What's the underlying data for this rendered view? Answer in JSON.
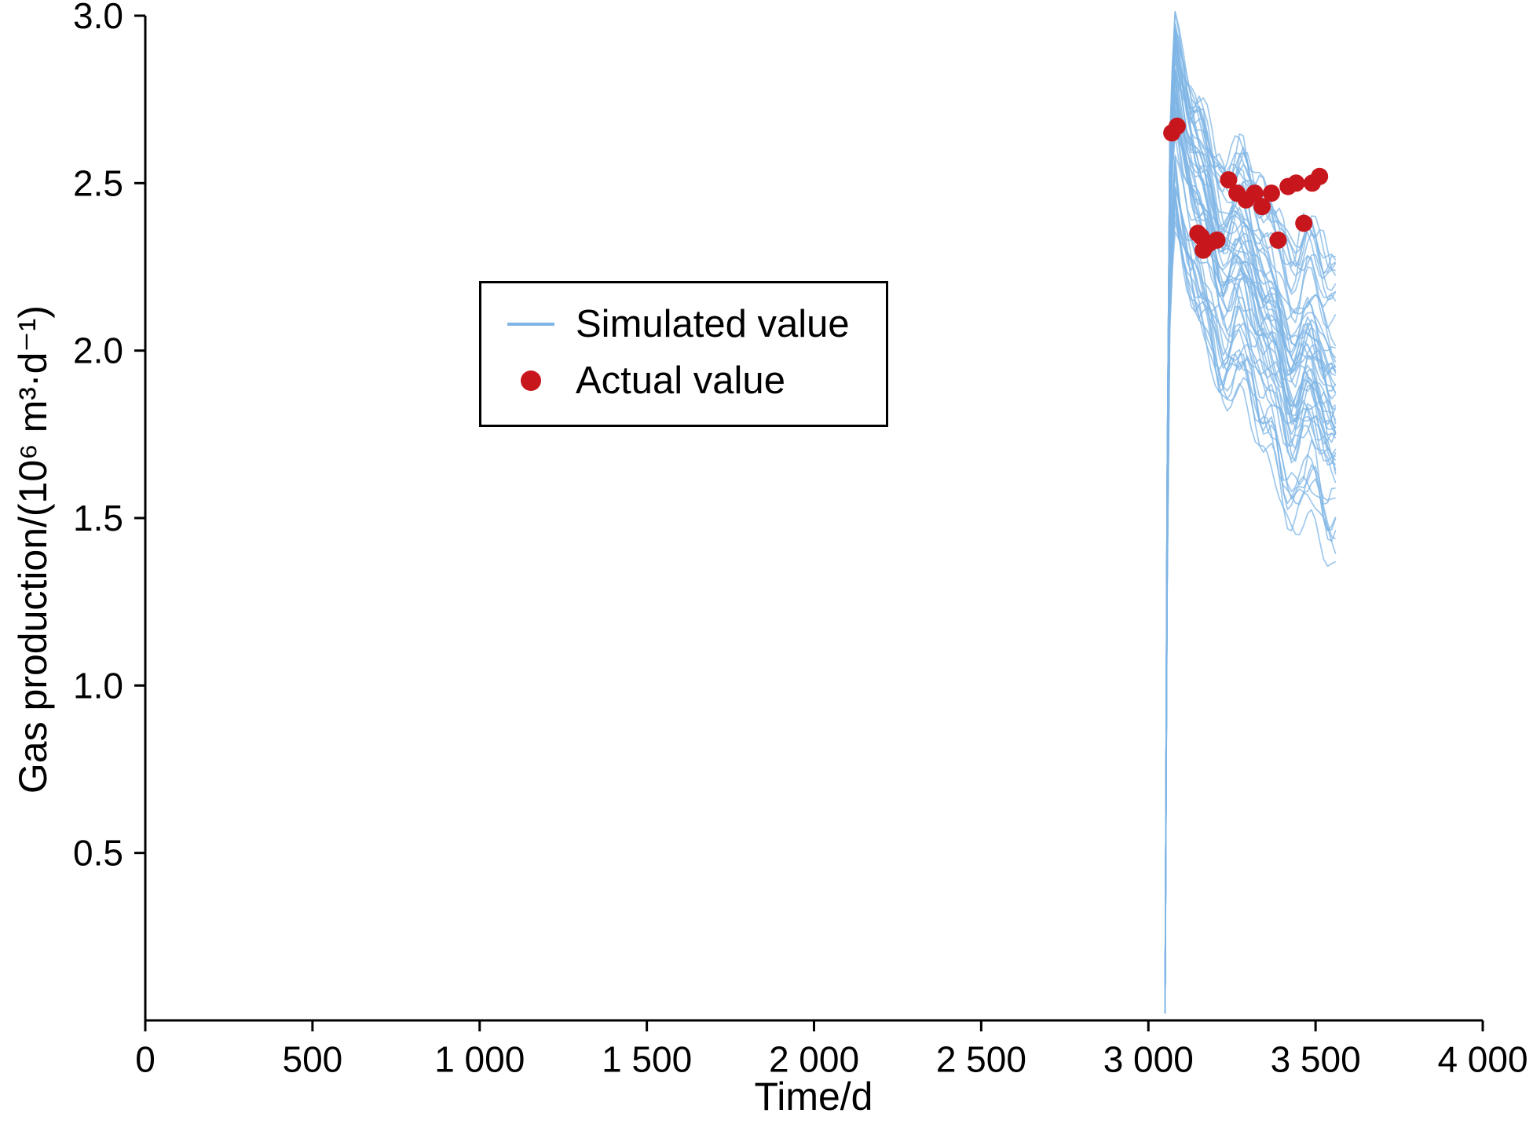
{
  "chart_data": {
    "type": "line",
    "title": "",
    "xlabel": "Time/d",
    "ylabel": "Gas production/(10⁶ m³·d⁻¹)",
    "xlim": [
      0,
      4000
    ],
    "ylim": [
      0,
      3.0
    ],
    "grid": false,
    "x_ticks": [
      {
        "value": 0,
        "label": "0"
      },
      {
        "value": 500,
        "label": "500"
      },
      {
        "value": 1000,
        "label": "1 000"
      },
      {
        "value": 1500,
        "label": "1 500"
      },
      {
        "value": 2000,
        "label": "2 000"
      },
      {
        "value": 2500,
        "label": "2 500"
      },
      {
        "value": 3000,
        "label": "3 000"
      },
      {
        "value": 3500,
        "label": "3 500"
      },
      {
        "value": 4000,
        "label": "4 000"
      }
    ],
    "y_ticks": [
      {
        "value": 0.5,
        "label": "0.5"
      },
      {
        "value": 1.0,
        "label": "1.0"
      },
      {
        "value": 1.5,
        "label": "1.5"
      },
      {
        "value": 2.0,
        "label": "2.0"
      },
      {
        "value": 2.5,
        "label": "2.5"
      },
      {
        "value": 3.0,
        "label": "3.0"
      }
    ],
    "legend": {
      "position": "upper-center-left",
      "entries": [
        {
          "label": "Simulated value",
          "type": "line",
          "color": "#7FB5E5"
        },
        {
          "label": "Actual value",
          "type": "dot",
          "color": "#C8161D"
        }
      ]
    },
    "actual_points": {
      "name": "Actual value",
      "color": "#C8161D",
      "marker_radius_px": 11,
      "points": [
        [
          3070,
          2.65
        ],
        [
          3086,
          2.67
        ],
        [
          3148,
          2.35
        ],
        [
          3158,
          2.34
        ],
        [
          3164,
          2.3
        ],
        [
          3182,
          2.32
        ],
        [
          3205,
          2.33
        ],
        [
          3240,
          2.51
        ],
        [
          3265,
          2.47
        ],
        [
          3292,
          2.45
        ],
        [
          3318,
          2.47
        ],
        [
          3340,
          2.43
        ],
        [
          3368,
          2.47
        ],
        [
          3388,
          2.33
        ],
        [
          3418,
          2.49
        ],
        [
          3442,
          2.5
        ],
        [
          3465,
          2.38
        ],
        [
          3490,
          2.5
        ],
        [
          3512,
          2.52
        ]
      ]
    },
    "simulated_ensemble": {
      "name": "Simulated value",
      "color": "#7FB5E5",
      "opacity": 0.75,
      "stroke_width": 1.7,
      "n_series": 55,
      "t_start": 3050,
      "t_rise_end": 3080,
      "t_end": 3560,
      "step": 12,
      "start_value": 0.02,
      "peak_range": [
        2.28,
        2.95
      ],
      "drop_range": [
        0.6,
        1.05
      ],
      "end_range": [
        1.22,
        2.1
      ],
      "seed": 7
    }
  }
}
